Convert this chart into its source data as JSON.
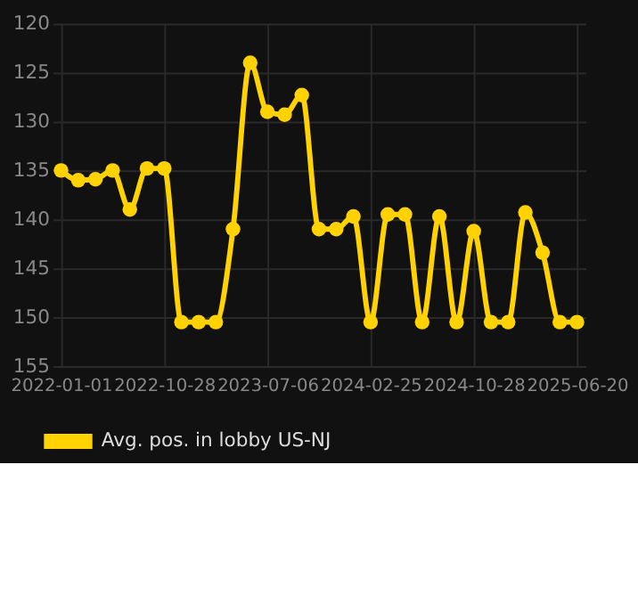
{
  "chart_data": {
    "type": "line",
    "categories": [
      "2022-01-01",
      null,
      null,
      null,
      null,
      null,
      "2022-10-28",
      null,
      null,
      null,
      null,
      null,
      "2023-07-06",
      null,
      null,
      null,
      null,
      null,
      "2024-02-25",
      null,
      null,
      null,
      null,
      null,
      "2024-10-28",
      null,
      null,
      null,
      null,
      null,
      "2025-06-20"
    ],
    "series": [
      {
        "name": "Avg. pos. in lobby US-NJ",
        "color": "#ffd200",
        "values": [
          135,
          136,
          135.9,
          135,
          139,
          134.8,
          134.8,
          150.5,
          150.5,
          150.5,
          141,
          124,
          129,
          129.3,
          127.3,
          141,
          141,
          139.7,
          150.5,
          139.5,
          139.5,
          150.5,
          139.7,
          150.5,
          141.2,
          150.5,
          150.5,
          139.3,
          143.4,
          150.5,
          150.5
        ]
      }
    ],
    "ylim": [
      155,
      120
    ],
    "yticks": [
      120,
      125,
      130,
      135,
      140,
      145,
      150,
      155
    ],
    "grid": true,
    "legend": "bottom",
    "marker": "circle",
    "line_style": "solid"
  }
}
